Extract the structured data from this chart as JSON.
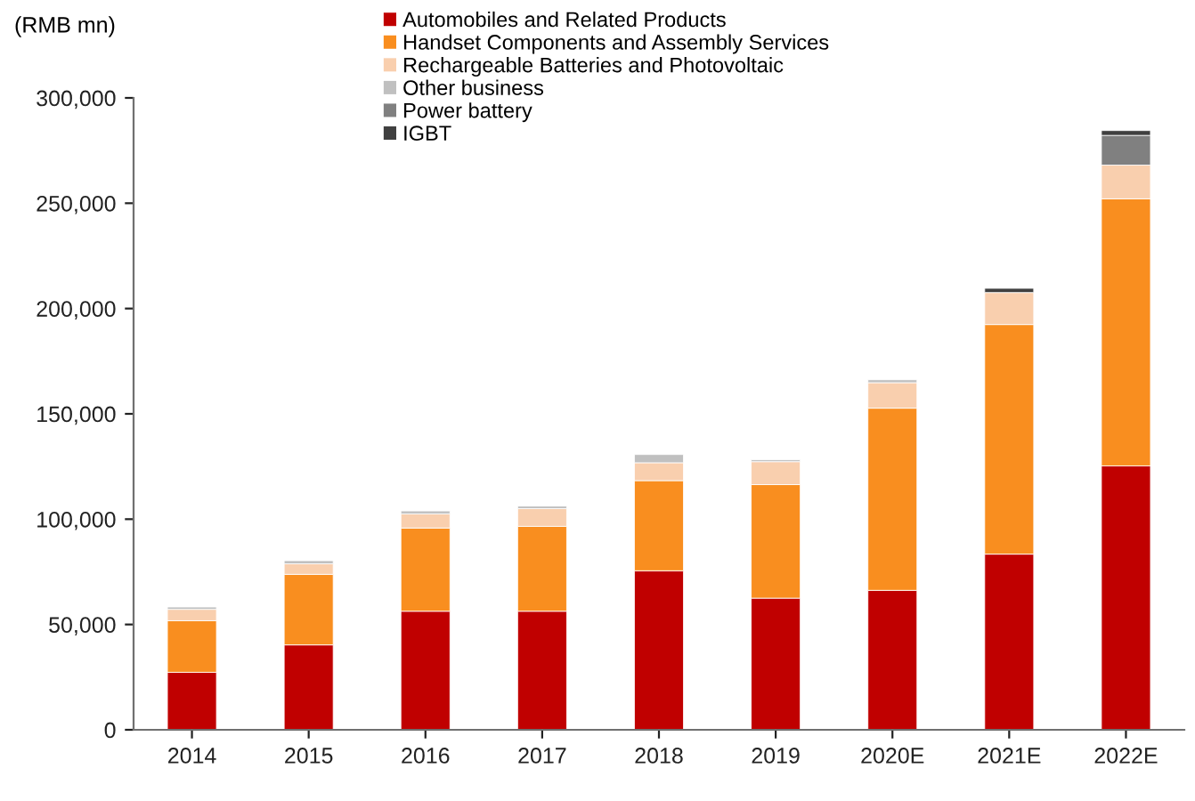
{
  "chart_data": {
    "type": "bar",
    "stacked": true,
    "ylabel": "(RMB mn)",
    "categories": [
      "2014",
      "2015",
      "2016",
      "2017",
      "2018",
      "2019",
      "2020E",
      "2021E",
      "2022E"
    ],
    "series": [
      {
        "name": "Automobiles and Related Products",
        "color": "#c00000",
        "values": [
          27300,
          40300,
          56300,
          56300,
          75500,
          62500,
          66200,
          83400,
          125300
        ]
      },
      {
        "name": "Handset Components and Assembly Services",
        "color": "#f98e1f",
        "values": [
          24500,
          33500,
          39500,
          40300,
          42800,
          53900,
          86500,
          109000,
          126800
        ]
      },
      {
        "name": "Rechargeable Batteries and Photovoltaic",
        "color": "#f9cfae",
        "values": [
          5400,
          5000,
          6700,
          8400,
          8500,
          10900,
          12100,
          15200,
          16000
        ]
      },
      {
        "name": "Other business",
        "color": "#c0c0c0",
        "values": [
          1100,
          1500,
          1400,
          1200,
          3900,
          900,
          1400,
          null,
          null
        ]
      },
      {
        "name": "Power battery",
        "color": "#808080",
        "values": [
          null,
          null,
          null,
          null,
          null,
          null,
          null,
          null,
          14100
        ]
      },
      {
        "name": "IGBT",
        "color": "#404040",
        "values": [
          null,
          null,
          null,
          null,
          null,
          null,
          null,
          2000,
          2300
        ]
      }
    ],
    "ylim": [
      0,
      300000
    ],
    "yticks": [
      {
        "value": 0,
        "label": "0"
      },
      {
        "value": 50000,
        "label": "50,000"
      },
      {
        "value": 100000,
        "label": "100,000"
      },
      {
        "value": 150000,
        "label": "150,000"
      },
      {
        "value": 200000,
        "label": "200,000"
      },
      {
        "value": 250000,
        "label": "250,000"
      },
      {
        "value": 300000,
        "label": "300,000"
      }
    ],
    "grid": false,
    "legend": "top"
  }
}
